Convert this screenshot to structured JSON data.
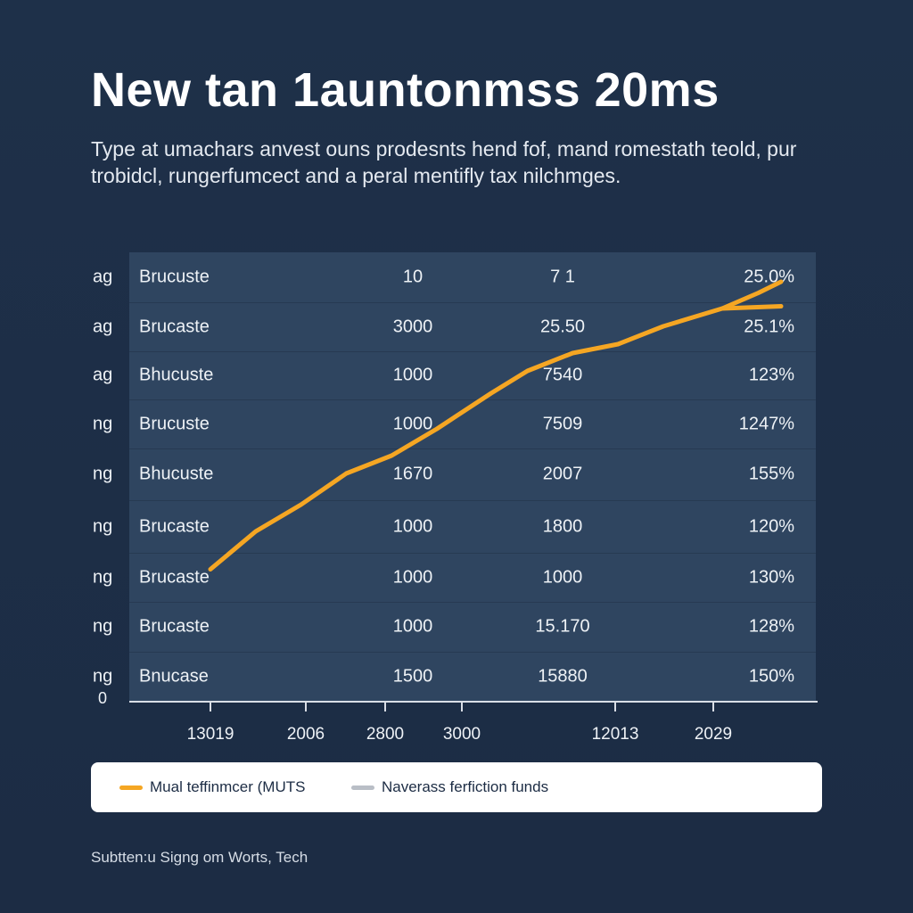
{
  "title": "New tan 1auntonmss 20ms",
  "subtitle": "Type at umachars anvest ouns prodesnts hend fof, mand romestath teold, pur trobidcl, rungerfumcect and a peral mentifly tax nilchmges.",
  "table": {
    "row_labels": [
      "ag",
      "ag",
      "ag",
      "ng",
      "ng",
      "ng",
      "ng",
      "ng",
      "ng"
    ],
    "rows": [
      {
        "name": "Brucuste",
        "a": "10",
        "b": "7 1",
        "c": "25.0%"
      },
      {
        "name": "Brucaste",
        "a": "3000",
        "b": "25.50",
        "c": "25.1%"
      },
      {
        "name": "Bhucuste",
        "a": "1000",
        "b": "7540",
        "c": "123%"
      },
      {
        "name": "Brucuste",
        "a": "1000",
        "b": "7509",
        "c": "1247%"
      },
      {
        "name": "Bhucuste",
        "a": "1670",
        "b": "2007",
        "c": "155%"
      },
      {
        "name": "Brucaste",
        "a": "1000",
        "b": "1800",
        "c": "120%"
      },
      {
        "name": "Brucaste",
        "a": "1000",
        "b": "1000",
        "c": "130%"
      },
      {
        "name": "Brucaste",
        "a": "1000",
        "b": "15.170",
        "c": "128%"
      },
      {
        "name": "Bnucase",
        "a": "1500",
        "b": "15880",
        "c": "150%"
      }
    ],
    "zero_label": "0"
  },
  "chart_data": {
    "type": "line",
    "x_tick_labels": [
      "13019",
      "2006",
      "2800",
      "3000",
      "12013",
      "2029"
    ],
    "y_min_label": "0",
    "series": [
      {
        "name": "Mual teffinmcer (MUTS",
        "color": "#f5a623",
        "points": [
          [
            0.0,
            0.295
          ],
          [
            0.1,
            0.38
          ],
          [
            0.2,
            0.44
          ],
          [
            0.3,
            0.51
          ],
          [
            0.4,
            0.55
          ],
          [
            0.5,
            0.61
          ],
          [
            0.62,
            0.69
          ],
          [
            0.7,
            0.74
          ],
          [
            0.8,
            0.78
          ],
          [
            0.9,
            0.8
          ],
          [
            1.0,
            0.84
          ],
          [
            1.13,
            0.88
          ],
          [
            1.21,
            0.915
          ],
          [
            1.26,
            0.94
          ]
        ],
        "branch": [
          [
            1.13,
            0.88
          ],
          [
            1.26,
            0.885
          ]
        ]
      }
    ],
    "grid": true,
    "legend_position": "bottom"
  },
  "legend": {
    "items": [
      {
        "label": "Mual teffinmcer (MUTS",
        "color": "#f5a623"
      },
      {
        "label": "Naverass ferfiction funds",
        "color": "#b9bec6"
      }
    ]
  },
  "source": "Subtten:u Signg om Worts, Tech"
}
